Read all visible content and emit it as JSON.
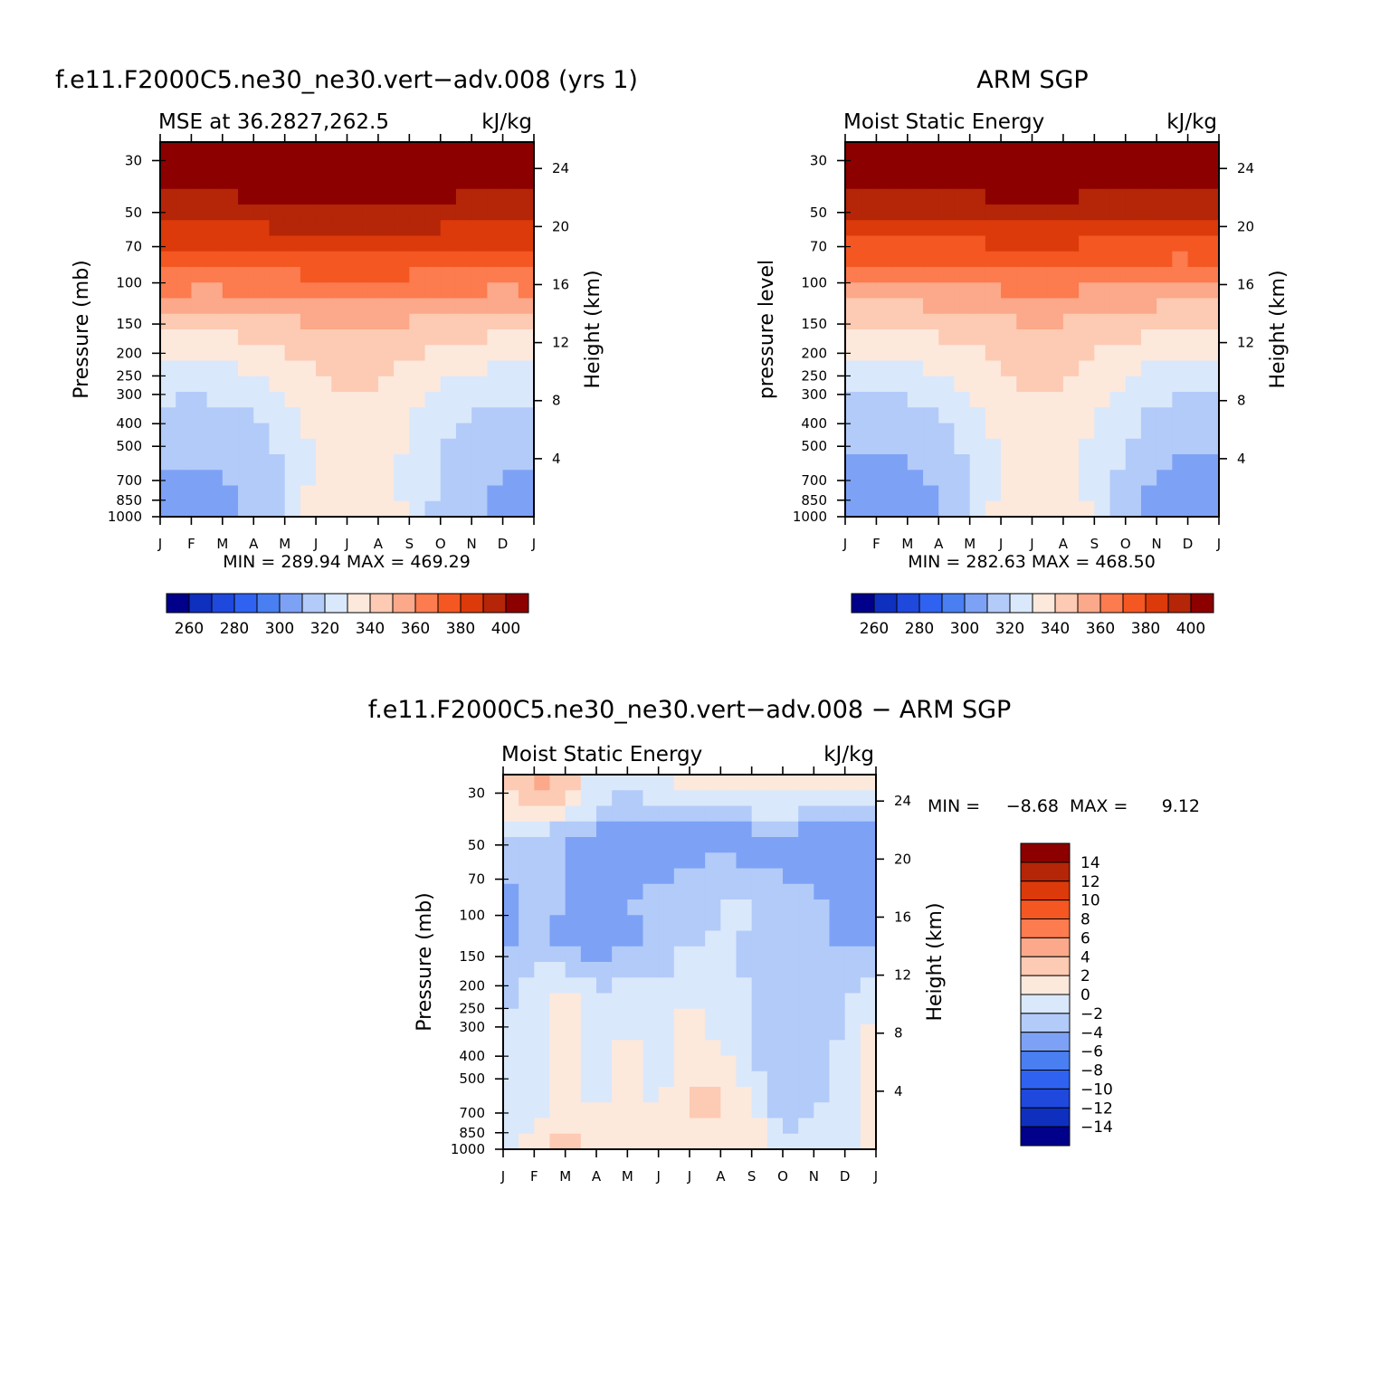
{
  "chart_data": [
    {
      "type": "heatmap",
      "title": "f.e11.F2000C5.ne30_ne30.vert-adv.008 (yrs 1)",
      "subtitle_left": "MSE at 36.2827,262.5",
      "subtitle_right": "kJ/kg",
      "ylabel": "Pressure (mb)",
      "ylabel_right": "Height (km)",
      "x_ticks": [
        "J",
        "F",
        "M",
        "A",
        "M",
        "J",
        "J",
        "A",
        "S",
        "O",
        "N",
        "D",
        "J"
      ],
      "y_ticks": [
        "30",
        "50",
        "70",
        "100",
        "150",
        "200",
        "250",
        "300",
        "400",
        "500",
        "700",
        "850",
        "1000"
      ],
      "y_right_ticks": [
        "24",
        "20",
        "16",
        "12",
        "8",
        "4"
      ],
      "min_max": "MIN = 289.94 MAX = 469.29",
      "colorbar_labels": [
        "260",
        "280",
        "300",
        "320",
        "340",
        "360",
        "380",
        "400"
      ],
      "levels": [
        [
          404,
          404,
          404,
          404,
          404,
          404,
          404,
          404,
          404,
          404,
          404,
          404,
          404
        ],
        [
          404,
          404,
          404,
          404,
          404,
          404,
          404,
          404,
          404,
          404,
          404,
          404,
          404
        ],
        [
          398,
          396,
          398,
          400,
          401,
          403,
          403,
          403,
          402,
          400,
          397,
          395,
          398
        ],
        [
          386,
          385,
          385,
          386,
          387,
          388,
          388,
          388,
          388,
          387,
          386,
          385,
          386
        ],
        [
          372,
          371,
          371,
          372,
          373,
          374,
          375,
          374,
          373,
          372,
          371,
          370,
          372
        ],
        [
          357,
          356,
          356,
          358,
          359,
          360,
          361,
          361,
          360,
          359,
          357,
          356,
          357
        ],
        [
          342,
          341,
          342,
          344,
          346,
          348,
          349,
          349,
          347,
          345,
          343,
          342,
          342
        ],
        [
          331,
          330,
          331,
          333,
          337,
          341,
          344,
          343,
          340,
          336,
          333,
          331,
          331
        ],
        [
          322,
          321,
          322,
          325,
          330,
          336,
          340,
          339,
          333,
          328,
          324,
          322,
          322
        ],
        [
          316,
          315,
          316,
          319,
          325,
          333,
          338,
          337,
          330,
          323,
          318,
          316,
          316
        ],
        [
          312,
          311,
          312,
          316,
          322,
          331,
          337,
          336,
          328,
          320,
          315,
          312,
          312
        ],
        [
          309,
          307,
          309,
          313,
          320,
          333,
          338,
          337,
          327,
          318,
          312,
          309,
          309
        ],
        [
          306,
          305,
          307,
          312,
          322,
          335,
          340,
          339,
          328,
          317,
          311,
          306,
          306
        ]
      ]
    },
    {
      "type": "heatmap",
      "title": "ARM SGP",
      "subtitle_left": "Moist Static Energy",
      "subtitle_right": "kJ/kg",
      "ylabel": "pressure level",
      "ylabel_right": "Height (km)",
      "x_ticks": [
        "J",
        "F",
        "M",
        "A",
        "M",
        "J",
        "J",
        "A",
        "S",
        "O",
        "N",
        "D",
        "J"
      ],
      "y_ticks": [
        "30",
        "50",
        "70",
        "100",
        "150",
        "200",
        "250",
        "300",
        "400",
        "500",
        "700",
        "850",
        "1000"
      ],
      "y_right_ticks": [
        "24",
        "20",
        "16",
        "12",
        "8",
        "4"
      ],
      "min_max": "MIN = 282.63 MAX = 468.50",
      "colorbar_labels": [
        "260",
        "280",
        "300",
        "320",
        "340",
        "360",
        "380",
        "400"
      ],
      "levels": [
        [
          404,
          404,
          404,
          404,
          404,
          404,
          404,
          404,
          404,
          404,
          404,
          404,
          404
        ],
        [
          404,
          404,
          404,
          404,
          404,
          404,
          404,
          404,
          404,
          404,
          404,
          404,
          404
        ],
        [
          394,
          393,
          394,
          396,
          398,
          399,
          399,
          399,
          398,
          396,
          394,
          393,
          394
        ],
        [
          382,
          381,
          381,
          382,
          383,
          384,
          384,
          384,
          383,
          382,
          381,
          381,
          382
        ],
        [
          368,
          367,
          367,
          368,
          369,
          370,
          371,
          370,
          369,
          368,
          367,
          366,
          368
        ],
        [
          353,
          352,
          352,
          354,
          355,
          357,
          358,
          357,
          356,
          354,
          353,
          352,
          353
        ],
        [
          340,
          339,
          340,
          342,
          344,
          347,
          349,
          348,
          345,
          343,
          341,
          339,
          340
        ],
        [
          330,
          329,
          330,
          333,
          336,
          341,
          344,
          343,
          339,
          335,
          331,
          329,
          330
        ],
        [
          321,
          320,
          321,
          324,
          330,
          337,
          341,
          339,
          333,
          327,
          322,
          320,
          321
        ],
        [
          315,
          314,
          315,
          319,
          326,
          334,
          338,
          337,
          330,
          323,
          317,
          314,
          315
        ],
        [
          310,
          309,
          310,
          314,
          321,
          331,
          336,
          335,
          327,
          319,
          312,
          309,
          310
        ],
        [
          305,
          304,
          306,
          311,
          319,
          333,
          338,
          337,
          327,
          316,
          308,
          304,
          305
        ],
        [
          300,
          299,
          302,
          308,
          318,
          335,
          340,
          339,
          328,
          314,
          304,
          299,
          300
        ]
      ]
    },
    {
      "type": "heatmap",
      "title": "f.e11.F2000C5.ne30_ne30.vert-adv.008 - ARM SGP",
      "subtitle_left": "Moist Static Energy",
      "subtitle_right": "kJ/kg",
      "ylabel": "Pressure (mb)",
      "ylabel_right": "Height (km)",
      "x_ticks": [
        "J",
        "F",
        "M",
        "A",
        "M",
        "J",
        "J",
        "A",
        "S",
        "O",
        "N",
        "D",
        "J"
      ],
      "y_ticks": [
        "30",
        "50",
        "70",
        "100",
        "150",
        "200",
        "250",
        "300",
        "400",
        "500",
        "700",
        "850",
        "1000"
      ],
      "y_right_ticks": [
        "24",
        "20",
        "16",
        "12",
        "8",
        "4"
      ],
      "min_max_label": "MIN =",
      "min_value": "-8.68",
      "max_label": "MAX =",
      "max_value": "9.12",
      "colorbar_labels": [
        "14",
        "12",
        "10",
        "8",
        "6",
        "4",
        "2",
        "0",
        "-2",
        "-4",
        "-6",
        "-8",
        "-10",
        "-12",
        "-14"
      ],
      "levels": [
        [
          3,
          5,
          4,
          -1,
          -2,
          -1,
          1,
          1,
          2,
          1,
          2,
          3,
          2
        ],
        [
          1,
          2,
          2,
          -2,
          -3,
          -2,
          -1,
          -1,
          -1,
          -1,
          -1,
          -2,
          -1
        ],
        [
          -3,
          -3,
          -4,
          -5,
          -6,
          -5,
          -6,
          -6,
          -5,
          -4,
          -6,
          -6,
          -6
        ],
        [
          -4,
          -3,
          -4,
          -5,
          -5,
          -5,
          -4,
          -3,
          -4,
          -4,
          -6,
          -6,
          -5
        ],
        [
          -5,
          -3,
          -4,
          -4,
          -4,
          -3,
          -2,
          -2,
          -2,
          -3,
          -3,
          -6,
          -6
        ],
        [
          -6,
          -3,
          -5,
          -6,
          -5,
          -4,
          -3,
          -2,
          -2,
          -4,
          -3,
          -5,
          -6
        ],
        [
          -4,
          -2,
          -3,
          -4,
          -3,
          -3,
          -1,
          -1,
          -3,
          -4,
          -3,
          -3,
          -3
        ],
        [
          -3,
          -1,
          1,
          -2,
          -1,
          -1,
          -1,
          -1,
          -2,
          -4,
          -3,
          -2,
          -1
        ],
        [
          -2,
          -1,
          1,
          -1,
          -1,
          -1,
          1,
          -1,
          -2,
          -4,
          -3,
          -2,
          1
        ],
        [
          -1,
          -1,
          2,
          -1,
          1,
          -1,
          1,
          1,
          -2,
          -4,
          -3,
          -1,
          1
        ],
        [
          -1,
          -2,
          1,
          -1,
          1,
          -1,
          2,
          2,
          -1,
          -4,
          -3,
          -1,
          1
        ],
        [
          -1,
          -1,
          2,
          1,
          1,
          1,
          2,
          2,
          1,
          -3,
          -2,
          -1,
          1
        ],
        [
          -1,
          1,
          3,
          1,
          1,
          1,
          1,
          1,
          1,
          -2,
          -1,
          -1,
          1
        ]
      ]
    }
  ],
  "colors": {
    "palette": [
      "#00008b",
      "#0f2fbf",
      "#1f48dd",
      "#2f62f0",
      "#4a7ff2",
      "#7da2f5",
      "#b3cbf9",
      "#dae8fb",
      "#fde8dc",
      "#fdcab3",
      "#fba98a",
      "#fc7b4f",
      "#f55722",
      "#dc3a0a",
      "#b52507",
      "#8c0000"
    ]
  }
}
